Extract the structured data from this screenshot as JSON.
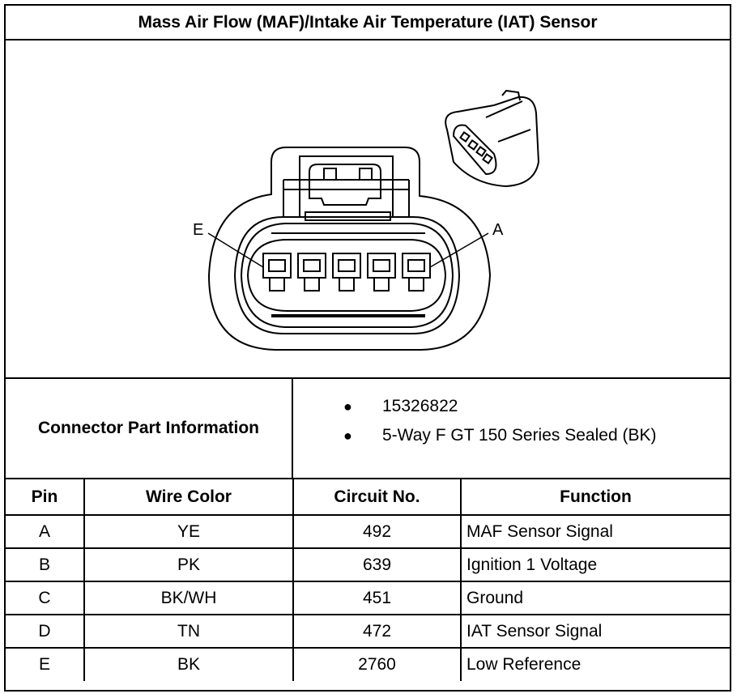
{
  "title": "Mass Air Flow (MAF)/Intake Air Temperature (IAT) Sensor",
  "diagram": {
    "pin_label_left": "E",
    "pin_label_right": "A"
  },
  "connector_info": {
    "label": "Connector Part Information",
    "items": [
      "15326822",
      "5-Way F GT 150 Series Sealed (BK)"
    ]
  },
  "table": {
    "headers": [
      "Pin",
      "Wire Color",
      "Circuit No.",
      "Function"
    ],
    "rows": [
      [
        "A",
        "YE",
        "492",
        "MAF Sensor Signal"
      ],
      [
        "B",
        "PK",
        "639",
        "Ignition 1 Voltage"
      ],
      [
        "C",
        "BK/WH",
        "451",
        "Ground"
      ],
      [
        "D",
        "TN",
        "472",
        "IAT Sensor Signal"
      ],
      [
        "E",
        "BK",
        "2760",
        "Low Reference"
      ]
    ]
  }
}
